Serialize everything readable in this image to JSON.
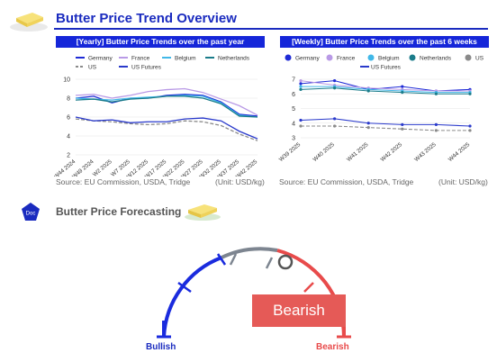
{
  "header": {
    "title": "Butter Price Trend Overview"
  },
  "yearly": {
    "title": "[Yearly] Butter Price Trends over the past year",
    "source": "Source: EU Commission, USDA, Tridge",
    "unit": "(Unit: USD/kg)"
  },
  "weekly": {
    "title": "[Weekly] Butter Price Trends over the past 6 weeks",
    "source": "Source: EU Commission, USDA, Tridge",
    "unit": "(Unit: USD/kg)"
  },
  "forecast": {
    "badge_icon": "Doc",
    "title": "Butter Price Forecasting",
    "verdict": "Bearish",
    "bullish_label": "Bullish",
    "bearish_label": "Bearish"
  },
  "colors": {
    "Germany": "#1f2bd6",
    "France": "#b99ae6",
    "Belgium": "#41b8e8",
    "Netherlands": "#1b7c8a",
    "US": "#8a8a8a",
    "US Futures": "#2a3acb",
    "accent": "#1a2bbf",
    "bearish": "#e55a57"
  },
  "chart_data": [
    {
      "type": "line",
      "title": "[Yearly] Butter Price Trends over the past year",
      "x": [
        "W44 2024",
        "W49 2024",
        "W2 2025",
        "W7 2025",
        "W12 2025",
        "W17 2025",
        "W22 2025",
        "W27 2025",
        "W32 2025",
        "W37 2025",
        "W42 2025"
      ],
      "ylim": [
        2,
        10
      ],
      "yticks": [
        2,
        4,
        6,
        8,
        10
      ],
      "series": [
        {
          "name": "Germany",
          "values": [
            8.0,
            8.2,
            7.5,
            8.0,
            8.0,
            8.3,
            8.4,
            8.3,
            7.6,
            6.3,
            6.1
          ]
        },
        {
          "name": "France",
          "values": [
            8.3,
            8.4,
            8.0,
            8.3,
            8.7,
            8.9,
            9.0,
            8.6,
            7.9,
            7.2,
            6.2
          ]
        },
        {
          "name": "Belgium",
          "values": [
            8.0,
            7.9,
            7.8,
            8.0,
            8.1,
            8.2,
            8.3,
            8.2,
            7.5,
            6.2,
            6.0
          ]
        },
        {
          "name": "Netherlands",
          "values": [
            7.8,
            7.9,
            7.6,
            7.9,
            8.0,
            8.2,
            8.2,
            8.0,
            7.4,
            6.1,
            6.0
          ]
        },
        {
          "name": "US",
          "values": [
            5.8,
            5.6,
            5.5,
            5.3,
            5.2,
            5.3,
            5.6,
            5.5,
            5.1,
            4.2,
            3.5
          ]
        },
        {
          "name": "US Futures",
          "values": [
            6.0,
            5.6,
            5.7,
            5.4,
            5.5,
            5.5,
            5.8,
            5.9,
            5.6,
            4.5,
            3.7
          ]
        }
      ]
    },
    {
      "type": "line",
      "title": "[Weekly] Butter Price Trends over the past 6 weeks",
      "x": [
        "W39 2025",
        "W40 2025",
        "W41 2025",
        "W42 2025",
        "W43 2025",
        "W44 2025"
      ],
      "ylim": [
        3,
        7
      ],
      "yticks": [
        3,
        4,
        5,
        6,
        7
      ],
      "series": [
        {
          "name": "Germany",
          "values": [
            6.7,
            6.9,
            6.3,
            6.5,
            6.2,
            6.3
          ]
        },
        {
          "name": "France",
          "values": [
            6.9,
            6.6,
            6.4,
            6.3,
            6.2,
            6.2
          ]
        },
        {
          "name": "Belgium",
          "values": [
            6.5,
            6.5,
            6.3,
            6.2,
            6.1,
            6.1
          ]
        },
        {
          "name": "Netherlands",
          "values": [
            6.3,
            6.4,
            6.2,
            6.1,
            6.0,
            6.0
          ]
        },
        {
          "name": "US",
          "values": [
            3.8,
            3.8,
            3.7,
            3.6,
            3.5,
            3.5
          ]
        },
        {
          "name": "US Futures",
          "values": [
            4.2,
            4.3,
            4.0,
            3.9,
            3.9,
            3.8
          ]
        }
      ]
    }
  ]
}
